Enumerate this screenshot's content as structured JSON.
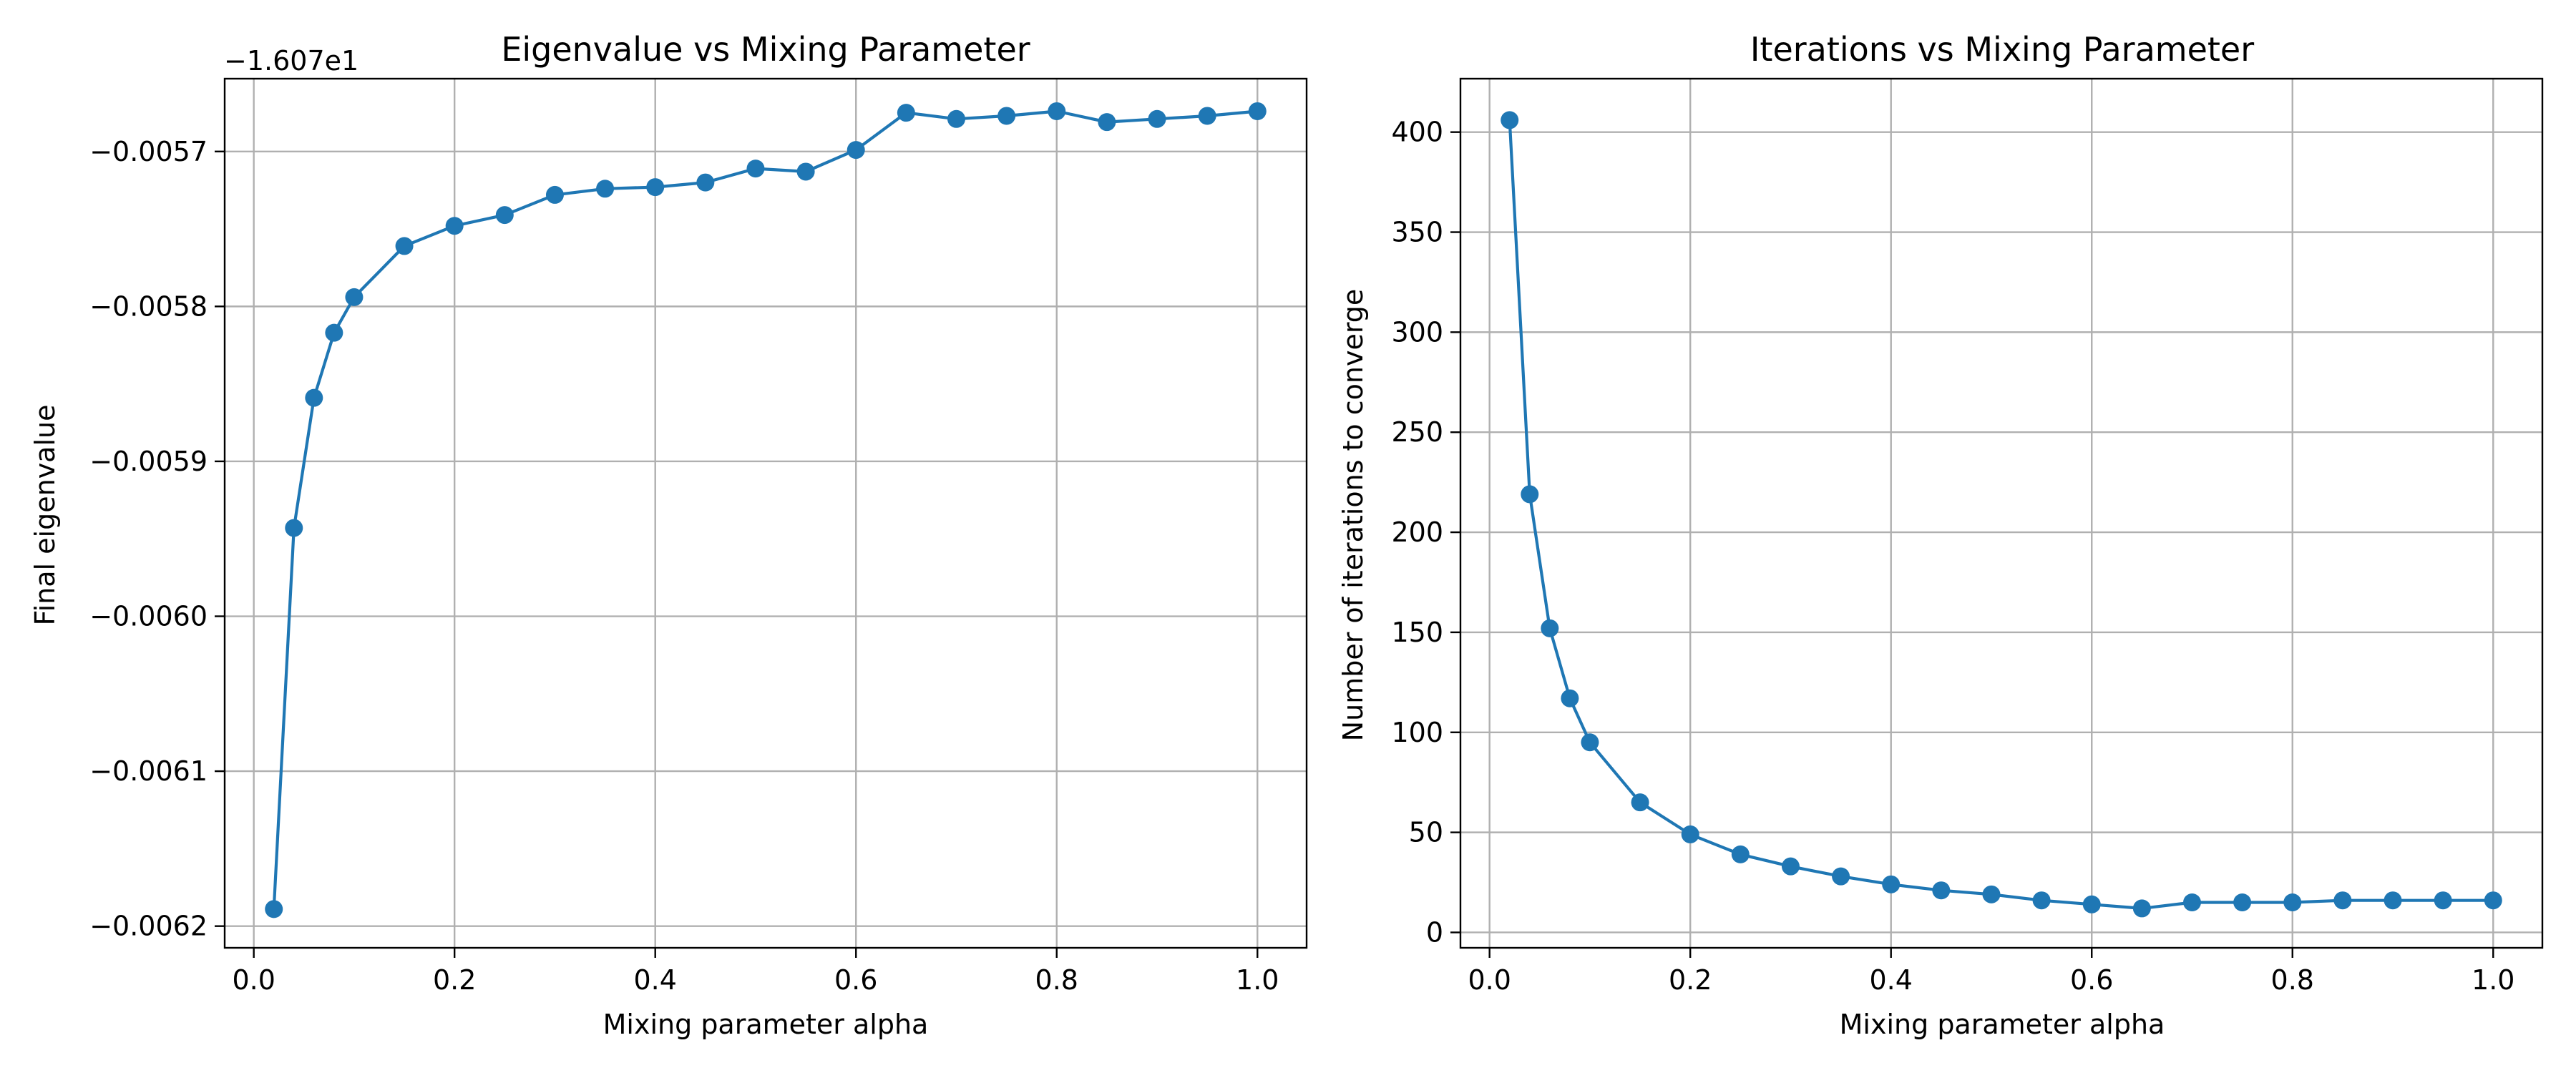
{
  "chart_data": [
    {
      "type": "line",
      "title": "Eigenvalue vs Mixing Parameter",
      "xlabel": "Mixing parameter alpha",
      "ylabel": "Final eigenvalue",
      "y_offset_text": "−1.607e1",
      "xlim": [
        -0.029,
        1.049
      ],
      "ylim": [
        -0.006214,
        -0.005653
      ],
      "x_ticks": [
        0.0,
        0.2,
        0.4,
        0.6,
        0.8,
        1.0
      ],
      "x_tick_labels": [
        "0.0",
        "0.2",
        "0.4",
        "0.6",
        "0.8",
        "1.0"
      ],
      "y_ticks": [
        -0.0062,
        -0.0061,
        -0.006,
        -0.0059,
        -0.0058,
        -0.0057
      ],
      "y_tick_labels": [
        "−0.0062",
        "−0.0061",
        "−0.0060",
        "−0.0059",
        "−0.0058",
        "−0.0057"
      ],
      "grid": true,
      "color": "#1f77b4",
      "marker": "circle",
      "series": [
        {
          "x": [
            0.02,
            0.04,
            0.06,
            0.08,
            0.1,
            0.15,
            0.2,
            0.25,
            0.3,
            0.35,
            0.4,
            0.45,
            0.5,
            0.55,
            0.6,
            0.65,
            0.7,
            0.75,
            0.8,
            0.85,
            0.9,
            0.95,
            1.0
          ],
          "values": [
            -0.006189,
            -0.005943,
            -0.005859,
            -0.005817,
            -0.005794,
            -0.005761,
            -0.005748,
            -0.005741,
            -0.005728,
            -0.005724,
            -0.005723,
            -0.00572,
            -0.005711,
            -0.005713,
            -0.005699,
            -0.005675,
            -0.005679,
            -0.005677,
            -0.005674,
            -0.005681,
            -0.005679,
            -0.005677,
            -0.005674
          ]
        }
      ]
    },
    {
      "type": "line",
      "title": "Iterations vs Mixing Parameter",
      "xlabel": "Mixing parameter alpha",
      "ylabel": "Number of iterations to converge",
      "xlim": [
        -0.029,
        1.049
      ],
      "ylim": [
        -7.7,
        426.7
      ],
      "x_ticks": [
        0.0,
        0.2,
        0.4,
        0.6,
        0.8,
        1.0
      ],
      "x_tick_labels": [
        "0.0",
        "0.2",
        "0.4",
        "0.6",
        "0.8",
        "1.0"
      ],
      "y_ticks": [
        0,
        50,
        100,
        150,
        200,
        250,
        300,
        350,
        400
      ],
      "y_tick_labels": [
        "0",
        "50",
        "100",
        "150",
        "200",
        "250",
        "300",
        "350",
        "400"
      ],
      "grid": true,
      "color": "#1f77b4",
      "marker": "circle",
      "series": [
        {
          "x": [
            0.02,
            0.04,
            0.06,
            0.08,
            0.1,
            0.15,
            0.2,
            0.25,
            0.3,
            0.35,
            0.4,
            0.45,
            0.5,
            0.55,
            0.6,
            0.65,
            0.7,
            0.75,
            0.8,
            0.85,
            0.9,
            0.95,
            1.0
          ],
          "values": [
            406,
            219,
            152,
            117,
            95,
            65,
            49,
            39,
            33,
            28,
            24,
            21,
            19,
            16,
            14,
            12,
            15,
            15,
            15,
            16,
            16,
            16,
            16
          ]
        }
      ]
    }
  ]
}
